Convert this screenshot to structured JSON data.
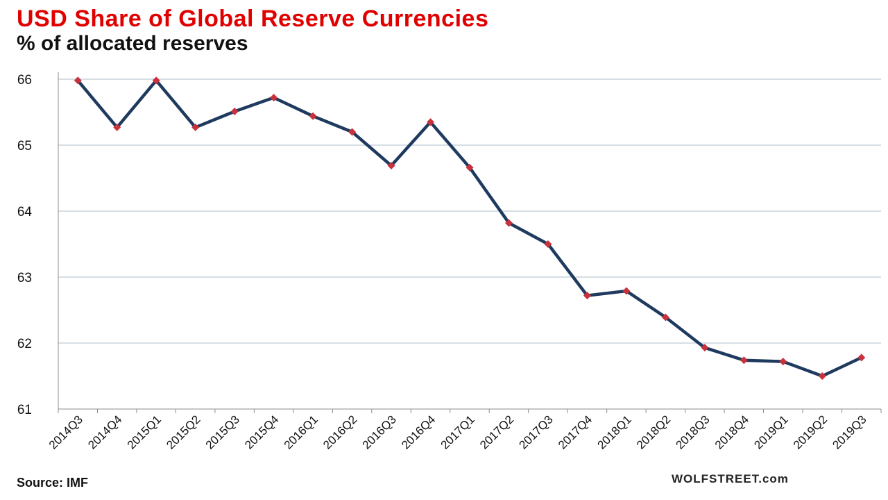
{
  "chart_data": {
    "type": "line",
    "title": "USD Share of Global  Reserve Currencies",
    "subtitle": "% of allocated reserves",
    "categories": [
      "2014Q3",
      "2014Q4",
      "2015Q1",
      "2015Q2",
      "2015Q3",
      "2015Q4",
      "2016Q1",
      "2016Q2",
      "2016Q3",
      "2016Q4",
      "2017Q1",
      "2017Q2",
      "2017Q3",
      "2017Q4",
      "2018Q1",
      "2018Q2",
      "2018Q3",
      "2018Q4",
      "2019Q1",
      "2019Q2",
      "2019Q3"
    ],
    "series": [
      {
        "values": [
          65.98,
          65.27,
          65.98,
          65.27,
          65.51,
          65.72,
          65.44,
          65.2,
          64.69,
          65.35,
          64.66,
          63.82,
          63.5,
          62.72,
          62.79,
          62.39,
          61.93,
          61.74,
          61.72,
          61.5,
          61.78
        ],
        "color": "#1f3a5f",
        "marker_color": "#c8323c"
      }
    ],
    "xlabel": "",
    "ylabel": "",
    "ylim": [
      61,
      66
    ],
    "yticks": [
      61,
      62,
      63,
      64,
      65,
      66
    ],
    "grid": true,
    "legend": "none"
  },
  "footer": {
    "source": "Source: IMF",
    "watermark": "WOLFSTREET.com"
  }
}
